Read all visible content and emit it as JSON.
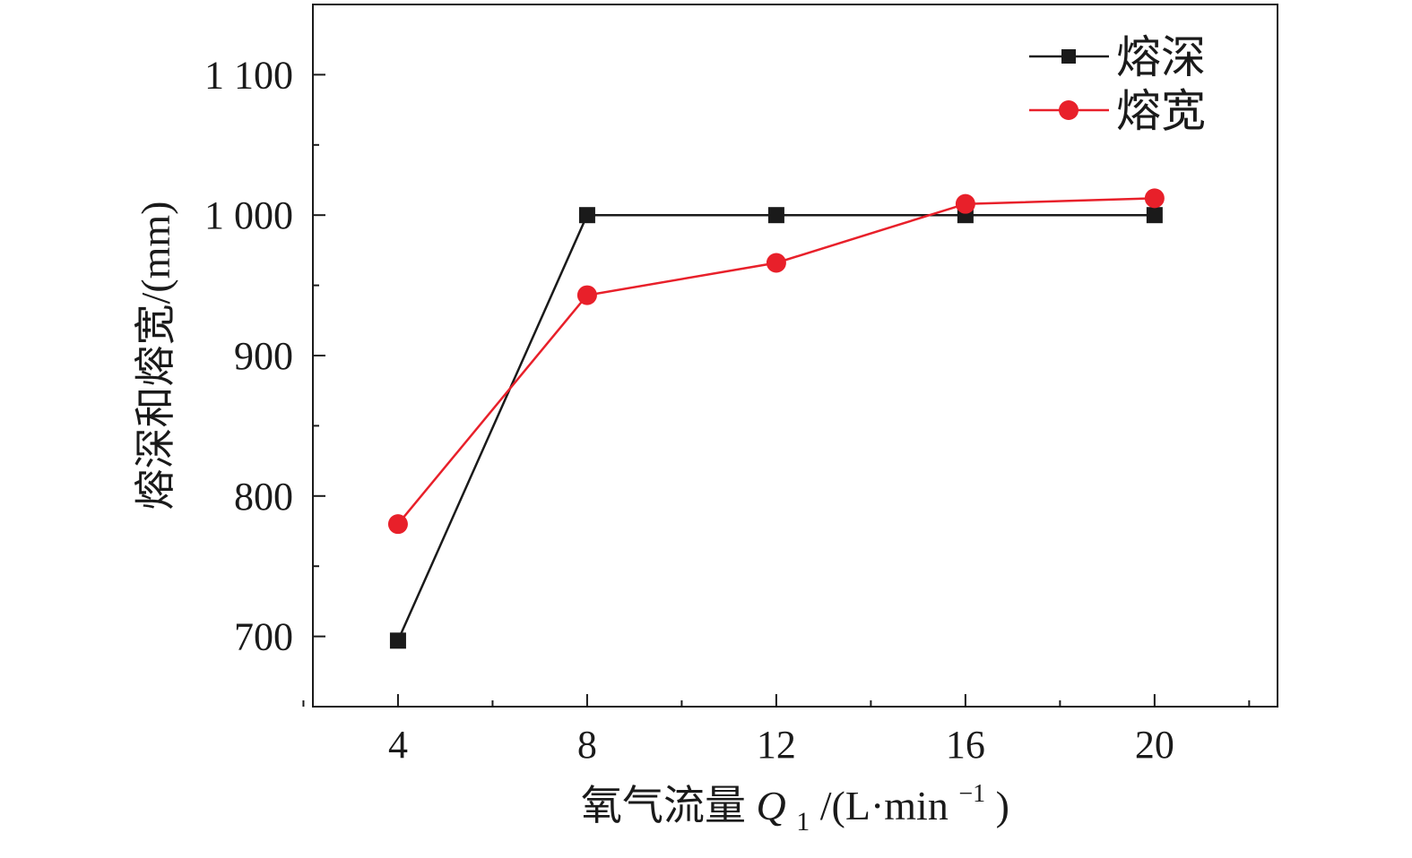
{
  "chart_data": {
    "type": "line",
    "title": "",
    "xlabel": {
      "main": "氧气流量 ",
      "symbol": "Q",
      "subscript": "1",
      "unit_start": "/(L·min",
      "superscript": "−1",
      "unit_end": ")"
    },
    "ylabel": "熔深和熔宽/(mm)",
    "xlim": [
      2.2,
      22.6
    ],
    "ylim": [
      650,
      1150
    ],
    "x_ticks": [
      4,
      8,
      12,
      16,
      20
    ],
    "x_tick_labels": [
      "4",
      "8",
      "12",
      "16",
      "20"
    ],
    "y_ticks": [
      700,
      800,
      900,
      1000,
      1100
    ],
    "y_tick_labels": [
      "700",
      "800",
      "900",
      "1 000",
      "1 100"
    ],
    "x": [
      4,
      8,
      12,
      16,
      20
    ],
    "series": [
      {
        "name": "熔深",
        "marker": "square",
        "color": "#1a1a1a",
        "values": [
          697,
          1000,
          1000,
          1000,
          1000
        ]
      },
      {
        "name": "熔宽",
        "marker": "circle",
        "color": "#e8202a",
        "values": [
          780,
          943,
          966,
          1008,
          1012
        ]
      }
    ],
    "legend": "top-right",
    "grid": false
  }
}
